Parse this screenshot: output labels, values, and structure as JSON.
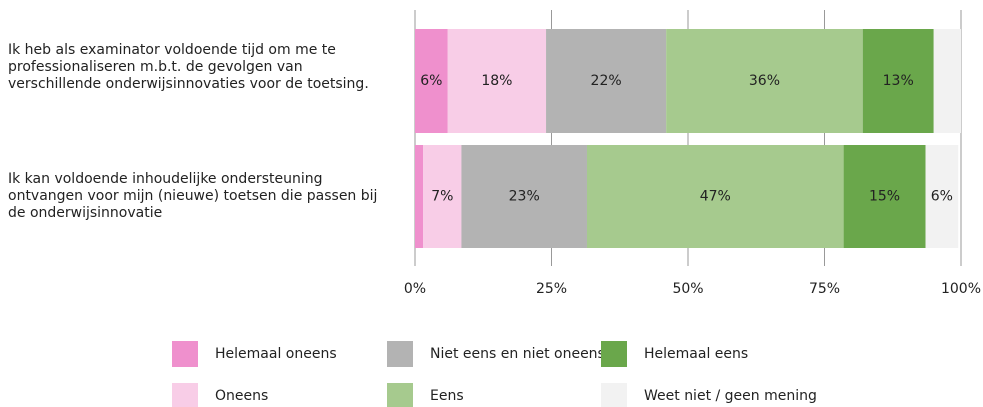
{
  "chart_data": {
    "type": "stacked-barh",
    "categories": [
      "Ik heb als examinator voldoende tijd om me te professionaliseren m.b.t. de gevolgen van verschillende onderwijsinnovaties voor de toetsing.",
      "Ik kan voldoende inhoudelijke ondersteuning ontvangen voor mijn (nieuwe) toetsen die passen bij de onderwijsinnovatie"
    ],
    "series": [
      {
        "name": "Helemaal oneens",
        "color": "#ef90cd",
        "values": [
          6,
          1.5
        ],
        "value_labels": [
          "6%",
          null
        ]
      },
      {
        "name": "Oneens",
        "color": "#f8cde7",
        "values": [
          18,
          7
        ],
        "value_labels": [
          "18%",
          "7%"
        ]
      },
      {
        "name": "Niet eens en niet oneens",
        "color": "#b3b3b3",
        "values": [
          22,
          23
        ],
        "value_labels": [
          "22%",
          "23%"
        ]
      },
      {
        "name": "Eens",
        "color": "#a6ca8e",
        "values": [
          36,
          47
        ],
        "value_labels": [
          "36%",
          "47%"
        ]
      },
      {
        "name": "Helemaal eens",
        "color": "#6aa74b",
        "values": [
          13,
          15
        ],
        "value_labels": [
          "13%",
          "15%"
        ]
      },
      {
        "name": "Weet niet / geen mening",
        "color": "#f2f2f2",
        "values": [
          5,
          6
        ],
        "value_labels": [
          null,
          "6%"
        ]
      }
    ],
    "xlim": [
      0,
      100
    ],
    "xticks": [
      {
        "value": 0,
        "label": "0%"
      },
      {
        "value": 25,
        "label": "25%"
      },
      {
        "value": 50,
        "label": "50%"
      },
      {
        "value": 75,
        "label": "75%"
      },
      {
        "value": 100,
        "label": "100%"
      }
    ],
    "grid": true
  }
}
